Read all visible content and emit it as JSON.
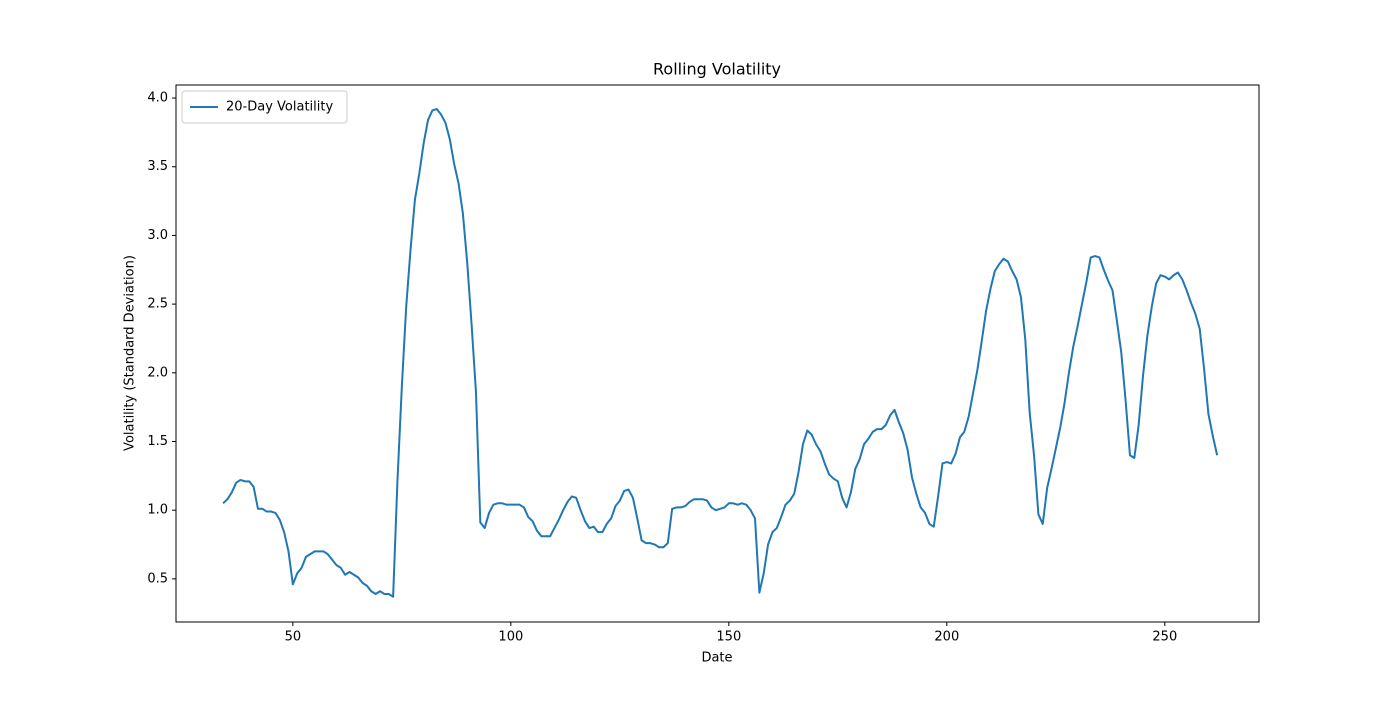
{
  "chart_data": {
    "type": "line",
    "title": "Rolling Volatility",
    "x_label": "Date",
    "y_label": "Volatility (Standard Deviation)",
    "x": [
      34,
      35,
      36,
      37,
      38,
      39,
      40,
      41,
      42,
      43,
      44,
      45,
      46,
      47,
      48,
      49,
      50,
      51,
      52,
      53,
      54,
      55,
      56,
      57,
      58,
      59,
      60,
      61,
      62,
      63,
      64,
      65,
      66,
      67,
      68,
      69,
      70,
      71,
      72,
      73,
      74,
      75,
      76,
      77,
      78,
      79,
      80,
      81,
      82,
      83,
      84,
      85,
      86,
      87,
      88,
      89,
      90,
      91,
      92,
      93,
      94,
      95,
      96,
      97,
      98,
      99,
      100,
      101,
      102,
      103,
      104,
      105,
      106,
      107,
      108,
      109,
      110,
      111,
      112,
      113,
      114,
      115,
      116,
      117,
      118,
      119,
      120,
      121,
      122,
      123,
      124,
      125,
      126,
      127,
      128,
      129,
      130,
      131,
      132,
      133,
      134,
      135,
      136,
      137,
      138,
      139,
      140,
      141,
      142,
      143,
      144,
      145,
      146,
      147,
      148,
      149,
      150,
      151,
      152,
      153,
      154,
      155,
      156,
      157,
      158,
      159,
      160,
      161,
      162,
      163,
      164,
      165,
      166,
      167,
      168,
      169,
      170,
      171,
      172,
      173,
      174,
      175,
      176,
      177,
      178,
      179,
      180,
      181,
      182,
      183,
      184,
      185,
      186,
      187,
      188,
      189,
      190,
      191,
      192,
      193,
      194,
      195,
      196,
      197,
      198,
      199,
      200,
      201,
      202,
      203,
      204,
      205,
      206,
      207,
      208,
      209,
      210,
      211,
      212,
      213,
      214,
      215,
      216,
      217,
      218,
      219,
      220,
      221,
      222,
      223,
      224,
      225,
      226,
      227,
      228,
      229,
      230,
      231,
      232,
      233,
      234,
      235,
      236,
      237,
      238,
      239,
      240,
      241,
      242,
      243,
      244,
      245,
      246,
      247,
      248,
      249,
      250,
      251,
      252,
      253,
      254,
      255,
      256,
      257,
      258,
      259,
      260,
      261,
      262
    ],
    "series": [
      {
        "name": "20-Day Volatility",
        "color": "#1f77b4",
        "values": [
          1.05,
          1.08,
          1.13,
          1.2,
          1.22,
          1.21,
          1.21,
          1.17,
          1.01,
          1.01,
          0.99,
          0.99,
          0.98,
          0.93,
          0.84,
          0.7,
          0.46,
          0.54,
          0.58,
          0.66,
          0.68,
          0.7,
          0.7,
          0.7,
          0.68,
          0.64,
          0.6,
          0.58,
          0.53,
          0.55,
          0.53,
          0.51,
          0.47,
          0.45,
          0.41,
          0.39,
          0.41,
          0.39,
          0.39,
          0.37,
          1.22,
          1.9,
          2.48,
          2.9,
          3.26,
          3.45,
          3.67,
          3.84,
          3.91,
          3.92,
          3.88,
          3.82,
          3.7,
          3.52,
          3.38,
          3.16,
          2.8,
          2.35,
          1.86,
          0.91,
          0.87,
          0.98,
          1.04,
          1.05,
          1.05,
          1.04,
          1.04,
          1.04,
          1.04,
          1.02,
          0.95,
          0.92,
          0.85,
          0.81,
          0.81,
          0.81,
          0.87,
          0.93,
          1.0,
          1.06,
          1.1,
          1.09,
          1.0,
          0.92,
          0.87,
          0.88,
          0.84,
          0.84,
          0.9,
          0.94,
          1.03,
          1.07,
          1.14,
          1.15,
          1.09,
          0.94,
          0.78,
          0.76,
          0.76,
          0.75,
          0.73,
          0.73,
          0.76,
          1.01,
          1.02,
          1.02,
          1.03,
          1.06,
          1.08,
          1.08,
          1.08,
          1.07,
          1.02,
          1.0,
          1.01,
          1.02,
          1.05,
          1.05,
          1.04,
          1.05,
          1.04,
          1.0,
          0.94,
          0.4,
          0.54,
          0.75,
          0.84,
          0.87,
          0.95,
          1.04,
          1.07,
          1.12,
          1.28,
          1.48,
          1.58,
          1.55,
          1.48,
          1.43,
          1.34,
          1.26,
          1.23,
          1.21,
          1.09,
          1.02,
          1.13,
          1.3,
          1.37,
          1.48,
          1.52,
          1.57,
          1.59,
          1.59,
          1.62,
          1.69,
          1.73,
          1.64,
          1.56,
          1.44,
          1.24,
          1.12,
          1.02,
          0.98,
          0.9,
          0.88,
          1.1,
          1.34,
          1.35,
          1.34,
          1.41,
          1.53,
          1.57,
          1.68,
          1.85,
          2.02,
          2.23,
          2.45,
          2.61,
          2.74,
          2.79,
          2.83,
          2.81,
          2.74,
          2.68,
          2.55,
          2.24,
          1.71,
          1.4,
          0.97,
          0.9,
          1.16,
          1.3,
          1.45,
          1.6,
          1.78,
          2.0,
          2.19,
          2.34,
          2.5,
          2.66,
          2.84,
          2.85,
          2.84,
          2.75,
          2.67,
          2.6,
          2.38,
          2.15,
          1.8,
          1.4,
          1.38,
          1.62,
          1.98,
          2.27,
          2.48,
          2.65,
          2.71,
          2.7,
          2.68,
          2.71,
          2.73,
          2.68,
          2.6,
          2.51,
          2.43,
          2.32,
          2.03,
          1.7,
          1.54,
          1.4
        ]
      }
    ],
    "xlim": [
      23.2,
      271.6
    ],
    "ylim": [
      0.186,
      4.095
    ],
    "xticks": [
      50,
      100,
      150,
      200,
      250
    ],
    "yticks": [
      {
        "value": 0.5,
        "label": "0.5"
      },
      {
        "value": 1.0,
        "label": "1.0"
      },
      {
        "value": 1.5,
        "label": "1.5"
      },
      {
        "value": 2.0,
        "label": "2.0"
      },
      {
        "value": 2.5,
        "label": "2.5"
      },
      {
        "value": 3.0,
        "label": "3.0"
      },
      {
        "value": 3.5,
        "label": "3.5"
      },
      {
        "value": 4.0,
        "label": "4.0"
      }
    ],
    "grid": false,
    "legend": "upper-left"
  }
}
